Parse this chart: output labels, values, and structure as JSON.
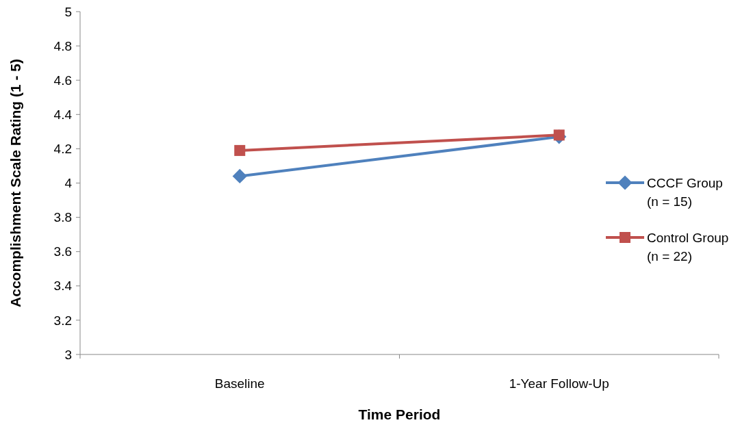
{
  "chart_data": {
    "type": "line",
    "xlabel": "Time Period",
    "ylabel": "Accomplishment Scale Rating (1 - 5)",
    "categories": [
      "Baseline",
      "1-Year Follow-Up"
    ],
    "series": [
      {
        "name": "CCCF Group\n(n = 15)",
        "color": "#4f81bd",
        "values": [
          4.04,
          4.27
        ],
        "marker": "diamond"
      },
      {
        "name": "Control Group\n(n = 22)",
        "color": "#c0504d",
        "values": [
          4.19,
          4.28
        ],
        "marker": "square"
      }
    ],
    "ylim": [
      3,
      5
    ],
    "yticks": [
      3,
      {
        "value": 3.2,
        "label": "3.2"
      },
      {
        "value": 3.4,
        "label": "3.4"
      },
      {
        "value": 3.6,
        "label": "3.6"
      },
      {
        "value": 3.8,
        "label": "3.8"
      },
      4,
      {
        "value": 4.2,
        "label": "4.2"
      },
      {
        "value": 4.4,
        "label": "4.4"
      },
      {
        "value": 4.6,
        "label": "4.6"
      },
      {
        "value": 4.8,
        "label": "4.8"
      },
      5
    ],
    "grid": false,
    "legend": "right"
  }
}
